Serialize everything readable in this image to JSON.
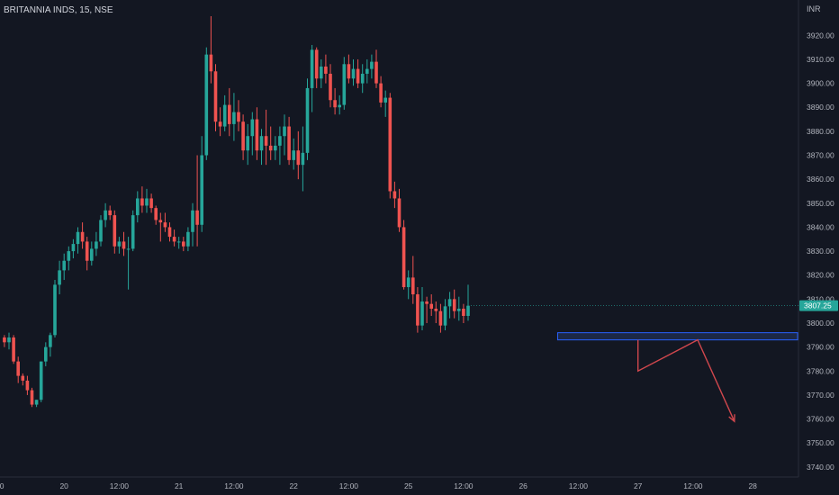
{
  "header": {
    "title": "BRITANNIA INDS, 15, NSE",
    "currency": "INR"
  },
  "colors": {
    "background": "#131722",
    "up": "#26a69a",
    "down": "#ef5350",
    "zone_border": "#2962ff",
    "zone_fill": "#1e2a4a",
    "projection": "#d0474d",
    "price_tag_bg": "#26a69a"
  },
  "chart_data": {
    "type": "candlestick",
    "ylim": [
      3735,
      3940
    ],
    "yticks": [
      3740,
      3750,
      3760,
      3770,
      3780,
      3790,
      3800,
      3810,
      3820,
      3830,
      3840,
      3850,
      3860,
      3870,
      3880,
      3890,
      3900,
      3910,
      3920
    ],
    "ytick_labels": [
      "3740.00",
      "3750.00",
      "3760.00",
      "3770.00",
      "3780.00",
      "3790.00",
      "3800.00",
      "3810.00",
      "3820.00",
      "3830.00",
      "3840.00",
      "3850.00",
      "3860.00",
      "3870.00",
      "3880.00",
      "3890.00",
      "3900.00",
      "3910.00",
      "3920.00"
    ],
    "xticks": [
      {
        "label": "00",
        "i": -1
      },
      {
        "label": "20",
        "i": 13
      },
      {
        "label": "12:00",
        "i": 25
      },
      {
        "label": "21",
        "i": 38
      },
      {
        "label": "12:00",
        "i": 50
      },
      {
        "label": "22",
        "i": 63
      },
      {
        "label": "12:00",
        "i": 75
      },
      {
        "label": "25",
        "i": 88
      },
      {
        "label": "12:00",
        "i": 100
      },
      {
        "label": "26",
        "i": 113
      },
      {
        "label": "12:00",
        "i": 125
      },
      {
        "label": "27",
        "i": 138
      },
      {
        "label": "12:00",
        "i": 150
      },
      {
        "label": "28",
        "i": 163
      }
    ],
    "last_price": 3807.25,
    "last_price_label": "3807.25",
    "candles": [
      [
        3794,
        3795,
        3790,
        3792
      ],
      [
        3792,
        3796,
        3789,
        3794
      ],
      [
        3794,
        3795,
        3783,
        3784
      ],
      [
        3784,
        3786,
        3775,
        3778
      ],
      [
        3778,
        3779,
        3774,
        3776
      ],
      [
        3776,
        3778,
        3770,
        3772
      ],
      [
        3772,
        3773,
        3765,
        3766
      ],
      [
        3766,
        3768,
        3765,
        3768
      ],
      [
        3768,
        3784,
        3767,
        3784
      ],
      [
        3784,
        3792,
        3782,
        3790
      ],
      [
        3790,
        3796,
        3786,
        3795
      ],
      [
        3795,
        3818,
        3794,
        3816
      ],
      [
        3816,
        3826,
        3812,
        3822
      ],
      [
        3822,
        3829,
        3818,
        3826
      ],
      [
        3826,
        3832,
        3822,
        3830
      ],
      [
        3830,
        3835,
        3827,
        3833
      ],
      [
        3833,
        3840,
        3829,
        3838
      ],
      [
        3838,
        3842,
        3831,
        3834
      ],
      [
        3834,
        3836,
        3822,
        3826
      ],
      [
        3826,
        3834,
        3824,
        3831
      ],
      [
        3831,
        3838,
        3828,
        3834
      ],
      [
        3834,
        3845,
        3832,
        3843
      ],
      [
        3843,
        3850,
        3840,
        3847
      ],
      [
        3847,
        3849,
        3843,
        3845
      ],
      [
        3845,
        3847,
        3829,
        3832
      ],
      [
        3832,
        3836,
        3829,
        3834
      ],
      [
        3834,
        3838,
        3828,
        3831
      ],
      [
        3831,
        3836,
        3814,
        3831
      ],
      [
        3831,
        3847,
        3830,
        3845
      ],
      [
        3845,
        3855,
        3842,
        3852
      ],
      [
        3852,
        3857,
        3846,
        3849
      ],
      [
        3849,
        3856,
        3846,
        3852
      ],
      [
        3852,
        3854,
        3846,
        3848
      ],
      [
        3848,
        3849,
        3841,
        3843
      ],
      [
        3843,
        3846,
        3834,
        3842
      ],
      [
        3842,
        3846,
        3838,
        3840
      ],
      [
        3840,
        3842,
        3834,
        3836
      ],
      [
        3836,
        3839,
        3832,
        3834
      ],
      [
        3834,
        3836,
        3831,
        3834
      ],
      [
        3834,
        3836,
        3830,
        3832
      ],
      [
        3832,
        3840,
        3830,
        3838
      ],
      [
        3838,
        3850,
        3832,
        3847
      ],
      [
        3847,
        3870,
        3832,
        3841
      ],
      [
        3841,
        3878,
        3838,
        3870
      ],
      [
        3870,
        3915,
        3868,
        3912
      ],
      [
        3912,
        3928,
        3900,
        3905
      ],
      [
        3905,
        3908,
        3880,
        3884
      ],
      [
        3884,
        3890,
        3878,
        3882
      ],
      [
        3882,
        3895,
        3880,
        3891
      ],
      [
        3891,
        3898,
        3878,
        3883
      ],
      [
        3883,
        3896,
        3876,
        3888
      ],
      [
        3888,
        3893,
        3880,
        3884
      ],
      [
        3884,
        3887,
        3868,
        3872
      ],
      [
        3872,
        3883,
        3866,
        3878
      ],
      [
        3878,
        3888,
        3870,
        3885
      ],
      [
        3885,
        3890,
        3868,
        3872
      ],
      [
        3872,
        3881,
        3866,
        3878
      ],
      [
        3878,
        3889,
        3866,
        3874
      ],
      [
        3874,
        3882,
        3868,
        3872
      ],
      [
        3872,
        3878,
        3868,
        3874
      ],
      [
        3874,
        3882,
        3866,
        3878
      ],
      [
        3878,
        3887,
        3870,
        3882
      ],
      [
        3882,
        3886,
        3866,
        3868
      ],
      [
        3868,
        3877,
        3864,
        3872
      ],
      [
        3872,
        3880,
        3860,
        3866
      ],
      [
        3866,
        3882,
        3855,
        3871
      ],
      [
        3871,
        3902,
        3868,
        3898
      ],
      [
        3898,
        3916,
        3888,
        3914
      ],
      [
        3914,
        3915,
        3898,
        3902
      ],
      [
        3902,
        3910,
        3898,
        3907
      ],
      [
        3907,
        3912,
        3900,
        3904
      ],
      [
        3904,
        3908,
        3890,
        3893
      ],
      [
        3893,
        3898,
        3887,
        3890
      ],
      [
        3890,
        3895,
        3887,
        3891
      ],
      [
        3891,
        3911,
        3889,
        3908
      ],
      [
        3908,
        3912,
        3900,
        3902
      ],
      [
        3902,
        3910,
        3899,
        3906
      ],
      [
        3906,
        3910,
        3898,
        3900
      ],
      [
        3900,
        3908,
        3896,
        3904
      ],
      [
        3904,
        3910,
        3900,
        3906
      ],
      [
        3906,
        3912,
        3902,
        3909
      ],
      [
        3909,
        3914,
        3898,
        3900
      ],
      [
        3900,
        3903,
        3890,
        3892
      ],
      [
        3892,
        3897,
        3886,
        3894
      ],
      [
        3894,
        3896,
        3852,
        3855
      ],
      [
        3855,
        3859,
        3848,
        3852
      ],
      [
        3852,
        3856,
        3838,
        3840
      ],
      [
        3840,
        3843,
        3814,
        3815
      ],
      [
        3815,
        3822,
        3810,
        3819
      ],
      [
        3819,
        3828,
        3808,
        3812
      ],
      [
        3812,
        3815,
        3796,
        3799
      ],
      [
        3799,
        3815,
        3797,
        3809
      ],
      [
        3809,
        3811,
        3800,
        3808
      ],
      [
        3808,
        3812,
        3803,
        3806
      ],
      [
        3806,
        3809,
        3800,
        3805
      ],
      [
        3805,
        3808,
        3796,
        3799
      ],
      [
        3799,
        3810,
        3797,
        3807
      ],
      [
        3807,
        3813,
        3802,
        3810
      ],
      [
        3810,
        3814,
        3802,
        3805
      ],
      [
        3805,
        3811,
        3801,
        3806
      ],
      [
        3806,
        3808,
        3800,
        3803
      ],
      [
        3803,
        3816,
        3801,
        3807.25
      ]
    ],
    "candle_spacing_note": "",
    "supply_zone": {
      "low": 3793,
      "high": 3796
    },
    "projection_path": [
      {
        "i": 138,
        "y": 3793
      },
      {
        "i": 138,
        "y": 3780
      },
      {
        "i": 151,
        "y": 3793
      },
      {
        "i": 159,
        "y": 3759
      }
    ]
  }
}
